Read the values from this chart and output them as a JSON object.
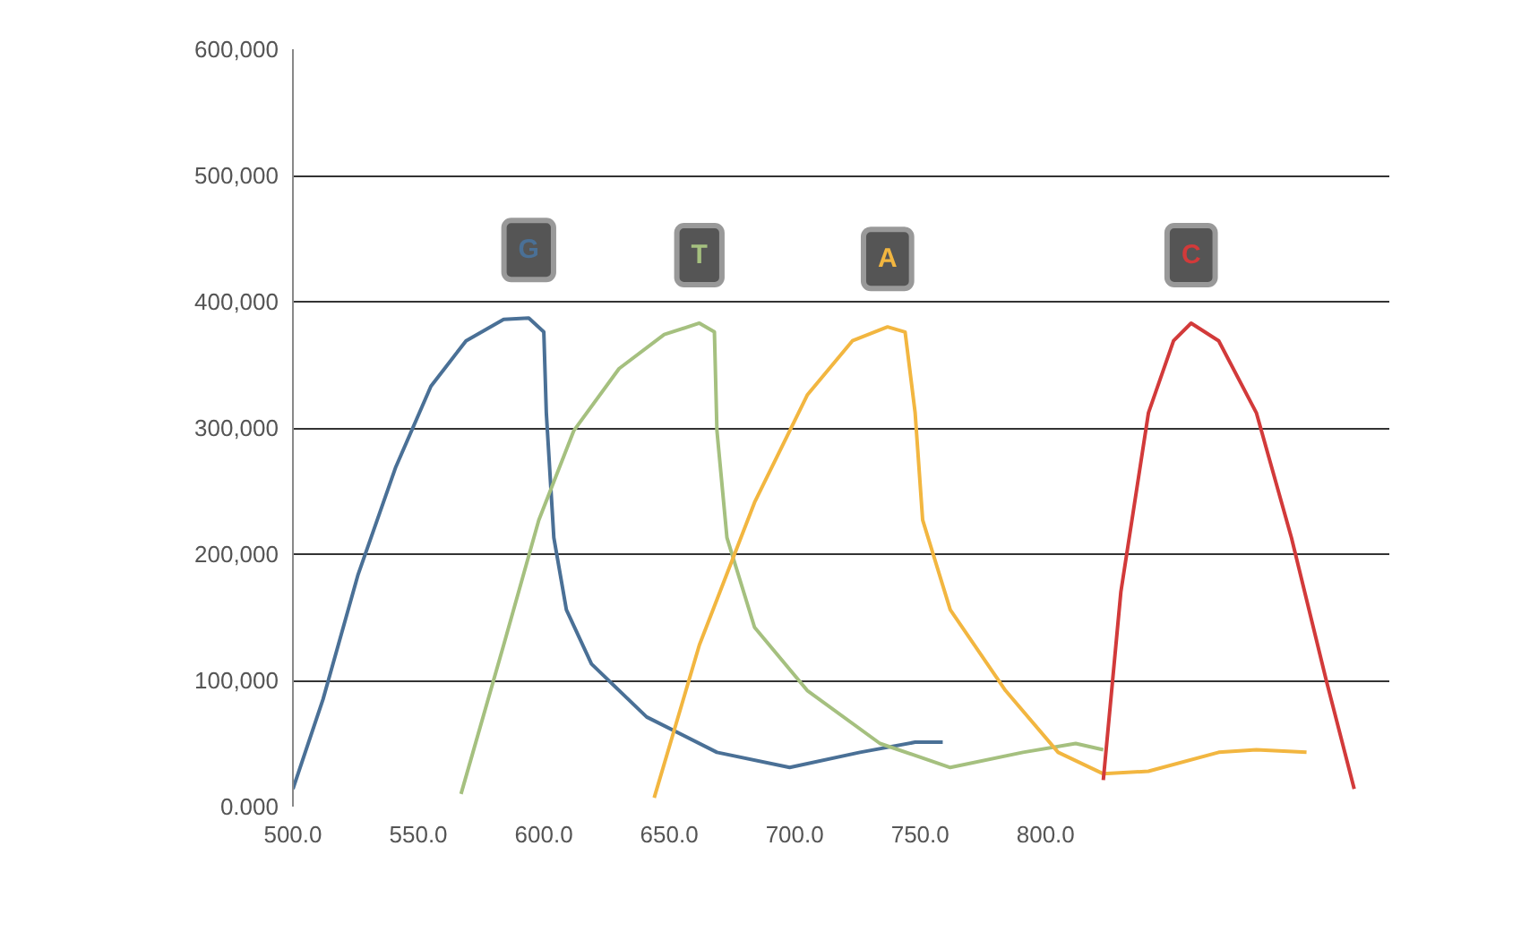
{
  "chart_data": {
    "type": "line",
    "xlim": [
      500,
      937
    ],
    "ylim": [
      0,
      600000
    ],
    "xticks": [
      {
        "value": 500,
        "label": "500.0"
      },
      {
        "value": 550,
        "label": "550.0"
      },
      {
        "value": 600,
        "label": "600.0"
      },
      {
        "value": 650,
        "label": "650.0"
      },
      {
        "value": 700,
        "label": "700.0"
      },
      {
        "value": 750,
        "label": "750.0"
      },
      {
        "value": 800,
        "label": "800.0"
      }
    ],
    "yticks": [
      {
        "value": 0,
        "label": "0.000"
      },
      {
        "value": 100000,
        "label": "100,000"
      },
      {
        "value": 200000,
        "label": "200,000"
      },
      {
        "value": 300000,
        "label": "300,000"
      },
      {
        "value": 400000,
        "label": "400,000"
      },
      {
        "value": 500000,
        "label": "500,000"
      },
      {
        "value": 600000,
        "label": "600,000"
      }
    ],
    "grid": "y",
    "legend": false,
    "marker": "none",
    "line_style": "solid",
    "series": [
      {
        "name": "G",
        "color": "#4a7096",
        "x": [
          500,
          512,
          526,
          541,
          555,
          569,
          584,
          594,
          600,
          601,
          604,
          609,
          619,
          641,
          669,
          698,
          726,
          748,
          759
        ],
        "values": [
          14000,
          85000,
          184000,
          269000,
          333000,
          369000,
          386000,
          387000,
          376000,
          312000,
          213000,
          156000,
          113000,
          71000,
          43000,
          31000,
          43000,
          51000,
          51000
        ]
      },
      {
        "name": "T",
        "color": "#a5c07f",
        "x": [
          567,
          584,
          598,
          612,
          630,
          648,
          662,
          668,
          669,
          673,
          684,
          705,
          734,
          762,
          791,
          812,
          823
        ],
        "values": [
          10000,
          128000,
          227000,
          298000,
          347000,
          374000,
          383000,
          376000,
          298000,
          213000,
          142000,
          92000,
          50000,
          31000,
          43000,
          50000,
          45000
        ]
      },
      {
        "name": "A",
        "color": "#f2b640",
        "x": [
          644,
          662,
          684,
          705,
          723,
          737,
          744,
          748,
          751,
          762,
          784,
          805,
          823,
          841,
          869,
          884,
          904
        ],
        "values": [
          7000,
          128000,
          241000,
          326000,
          369000,
          380000,
          376000,
          312000,
          227000,
          156000,
          92000,
          43000,
          26000,
          28000,
          43000,
          45000,
          43000
        ]
      },
      {
        "name": "C",
        "color": "#d23a3a",
        "x": [
          823,
          830,
          841,
          851,
          858,
          869,
          884,
          898,
          912,
          923
        ],
        "values": [
          21000,
          170000,
          312000,
          369000,
          383000,
          369000,
          312000,
          213000,
          99000,
          14000
        ]
      }
    ]
  }
}
